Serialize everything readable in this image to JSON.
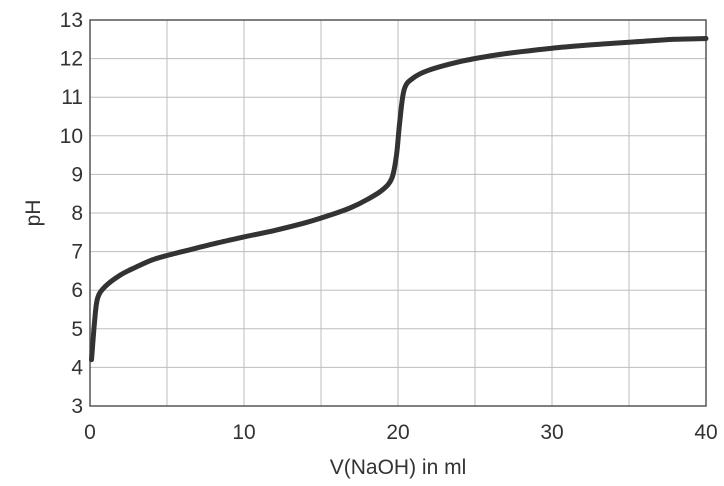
{
  "chart_data": {
    "type": "line",
    "title": "",
    "xlabel": "V(NaOH) in ml",
    "ylabel": "pH",
    "xlim": [
      0,
      40
    ],
    "ylim": [
      3,
      13
    ],
    "xticks": [
      0,
      10,
      20,
      30,
      40
    ],
    "yticks": [
      3,
      4,
      5,
      6,
      7,
      8,
      9,
      10,
      11,
      12,
      13
    ],
    "grid": true,
    "legend": "none",
    "colors": {
      "line": "#333333",
      "grid": "#bdbdbd",
      "axis": "#555555"
    },
    "series": [
      {
        "values": [
          [
            0.1,
            4.2
          ],
          [
            0.3,
            5.2
          ],
          [
            0.5,
            5.8
          ],
          [
            1,
            6.1
          ],
          [
            2,
            6.4
          ],
          [
            3,
            6.6
          ],
          [
            4,
            6.78
          ],
          [
            5,
            6.9
          ],
          [
            6,
            7.0
          ],
          [
            8,
            7.2
          ],
          [
            10,
            7.38
          ],
          [
            12,
            7.55
          ],
          [
            14,
            7.75
          ],
          [
            16,
            8.0
          ],
          [
            17,
            8.15
          ],
          [
            18,
            8.35
          ],
          [
            19,
            8.6
          ],
          [
            19.6,
            8.9
          ],
          [
            19.9,
            9.5
          ],
          [
            20.1,
            10.3
          ],
          [
            20.4,
            11.2
          ],
          [
            21,
            11.5
          ],
          [
            22,
            11.7
          ],
          [
            24,
            11.92
          ],
          [
            26,
            12.07
          ],
          [
            28,
            12.18
          ],
          [
            30,
            12.27
          ],
          [
            32,
            12.34
          ],
          [
            34,
            12.4
          ],
          [
            36,
            12.45
          ],
          [
            38,
            12.5
          ],
          [
            40,
            12.52
          ]
        ]
      }
    ]
  }
}
